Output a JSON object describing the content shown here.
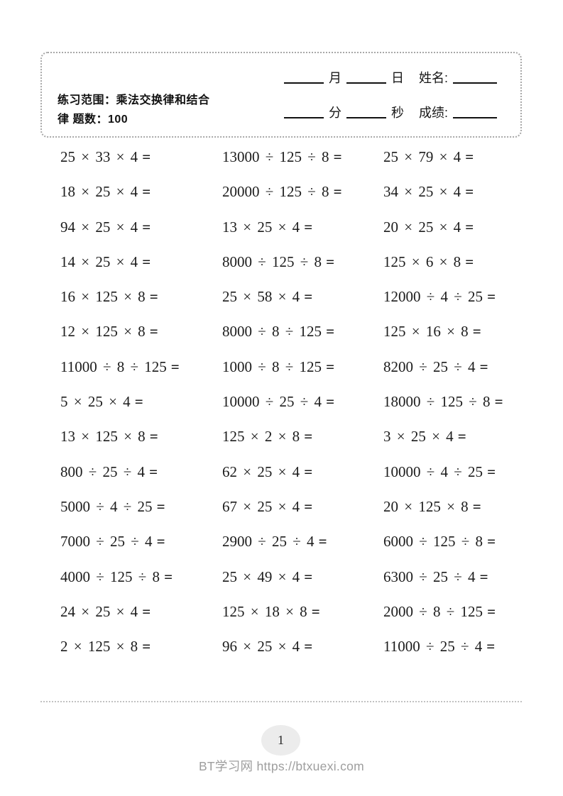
{
  "header": {
    "scope_line1": "练习范围：乘法交换律和结合",
    "scope_line2": "律 题数：100",
    "month_label": "月",
    "day_label": "日",
    "name_label": "姓名:",
    "minute_label": "分",
    "second_label": "秒",
    "score_label": "成绩:"
  },
  "symbols": {
    "equals": "="
  },
  "problems": [
    "25 × 33 × 4",
    "13000 ÷ 125 ÷ 8",
    "25 × 79 × 4",
    "18 × 25 × 4",
    "20000 ÷ 125 ÷ 8",
    "34 × 25 × 4",
    "94 × 25 × 4",
    "13 × 25 × 4",
    "20 × 25 × 4",
    "14 × 25 × 4",
    "8000 ÷ 125 ÷ 8",
    "125 × 6 × 8",
    "16 × 125 × 8",
    "25 × 58 × 4",
    "12000 ÷ 4 ÷ 25",
    "12 × 125 × 8",
    "8000 ÷ 8 ÷ 125",
    "125 × 16 × 8",
    "11000 ÷ 8 ÷ 125",
    "1000 ÷ 8 ÷ 125",
    "8200 ÷ 25 ÷ 4",
    "5 × 25 × 4",
    "10000 ÷ 25 ÷ 4",
    "18000 ÷ 125 ÷ 8",
    "13 × 125 × 8",
    "125 × 2 × 8",
    "3 × 25 × 4",
    "800 ÷ 25 ÷ 4",
    "62 × 25 × 4",
    "10000 ÷ 4 ÷ 25",
    "5000 ÷ 4 ÷ 25",
    "67 × 25 × 4",
    "20 × 125 × 8",
    "7000 ÷ 25 ÷ 4",
    "2900 ÷ 25 ÷ 4",
    "6000 ÷ 125 ÷ 8",
    "4000 ÷ 125 ÷ 8",
    "25 × 49 × 4",
    "6300 ÷ 25 ÷ 4",
    "24 × 25 × 4",
    "125 × 18 × 8",
    "2000 ÷ 8 ÷ 125",
    "2 × 125 × 8",
    "96 × 25 × 4",
    "11000 ÷ 25 ÷ 4"
  ],
  "footer": {
    "page_number": "1",
    "site_text": "BT学习网 https://btxuexi.com"
  },
  "colors": {
    "text": "#1c1c1c",
    "muted": "#9e9e9e",
    "badge": "#ececec",
    "dots": "#a8a8a8",
    "sep": "#c2c2c2"
  }
}
